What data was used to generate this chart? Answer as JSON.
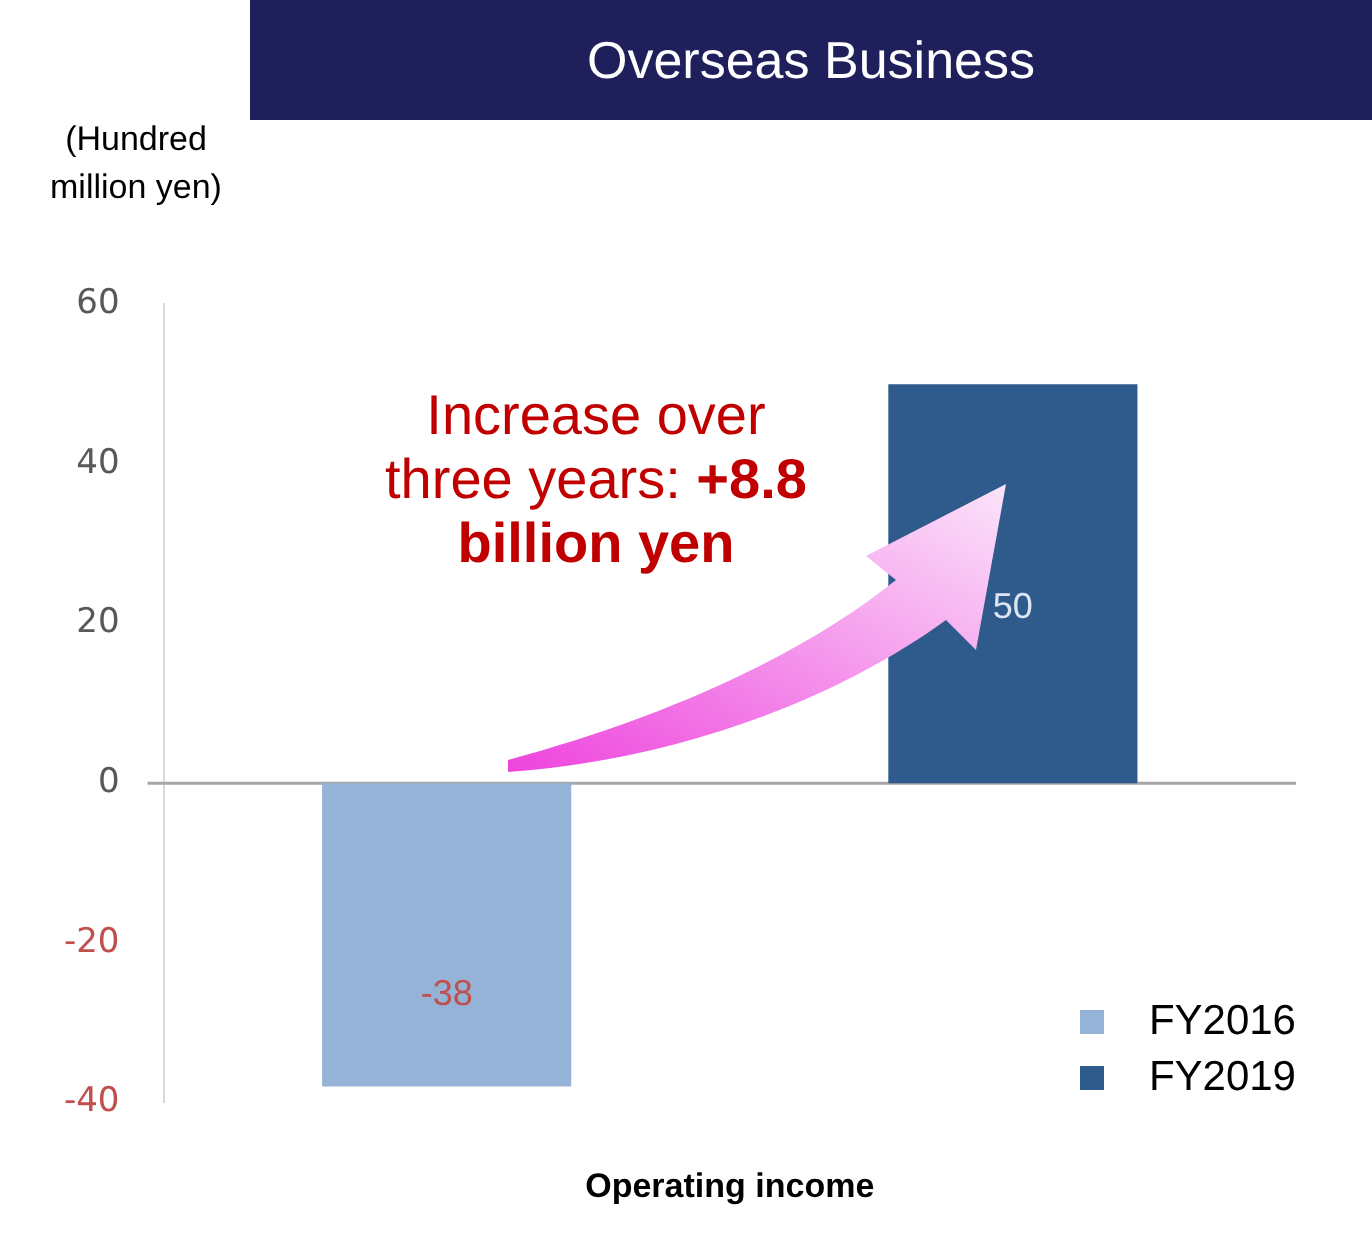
{
  "chart_data": {
    "type": "bar",
    "title": "Overseas Business",
    "ylabel": "(Hundred million yen)",
    "xlabel": "Operating income",
    "categories": [
      null,
      null
    ],
    "series": [
      {
        "name": "FY2016",
        "color": "#95b3d7",
        "values": [
          -38,
          null
        ]
      },
      {
        "name": "FY2019",
        "color": "#2f5a8c",
        "values": [
          null,
          50
        ]
      }
    ],
    "ylim": [
      -40,
      60
    ],
    "yticks": [
      -40,
      -20,
      0,
      20,
      40,
      60
    ],
    "grid": false,
    "ref_lines": [
      {
        "axis": "y",
        "value": 0,
        "color": "#a6a6a6"
      }
    ],
    "legend": "bottom right",
    "data_labels": true,
    "annotations": [
      "Increase over three years:",
      "+8.8 billion yen"
    ]
  }
}
